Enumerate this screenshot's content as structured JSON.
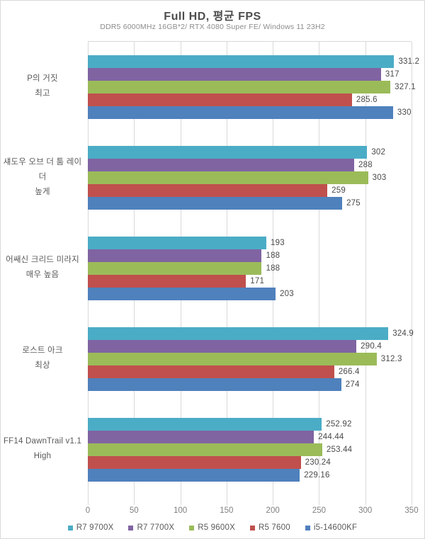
{
  "header": {
    "title": "Full HD, 평균 FPS",
    "subtitle": "DDR5 6000MHz 16GB*2/ RTX 4080 Super FE/ Windows 11 23H2"
  },
  "chart_data": {
    "type": "bar",
    "orientation": "horizontal",
    "title": "Full HD, 평균 FPS",
    "subtitle": "DDR5 6000MHz 16GB*2/ RTX 4080 Super FE/ Windows 11 23H2",
    "categories": [
      {
        "name": "P의 거짓 최고",
        "lines": [
          "P의 거짓",
          "최고"
        ]
      },
      {
        "name": "섀도우 오브 더 툼 레이더 높게",
        "lines": [
          "섀도우 오브 더 툼 레이더",
          "높게"
        ]
      },
      {
        "name": "어쌔신 크리드 미라지 매우 높음",
        "lines": [
          "어쌔신 크리드 미라지",
          "매우 높음"
        ]
      },
      {
        "name": "로스트 아크 최상",
        "lines": [
          "로스트 아크",
          "최상"
        ]
      },
      {
        "name": "FF14 DawnTrail v1.1 High",
        "lines": [
          "FF14 DawnTrail v1.1",
          "High"
        ]
      }
    ],
    "series": [
      {
        "name": "R7 9700X",
        "color": "#4BACC6",
        "values": [
          331.2,
          302,
          193,
          324.9,
          252.92
        ]
      },
      {
        "name": "R7 7700X",
        "color": "#8064A2",
        "values": [
          317,
          288,
          188,
          290.4,
          244.44
        ]
      },
      {
        "name": "R5 9600X",
        "color": "#9BBB59",
        "values": [
          327.1,
          303,
          188,
          312.3,
          253.44
        ]
      },
      {
        "name": "R5 7600",
        "color": "#C0504D",
        "values": [
          285.6,
          259,
          171,
          266.4,
          230.24
        ]
      },
      {
        "name": "i5-14600KF",
        "color": "#4F81BD",
        "values": [
          330,
          275,
          203,
          274,
          229.16
        ]
      }
    ],
    "xlabel": "",
    "ylabel": "",
    "xlim": [
      0,
      350
    ],
    "xticks": [
      0,
      50,
      100,
      150,
      200,
      250,
      300,
      350
    ],
    "grid": true,
    "grid_color": "#d9d9d9",
    "value_labels": true,
    "legend_position": "bottom"
  }
}
